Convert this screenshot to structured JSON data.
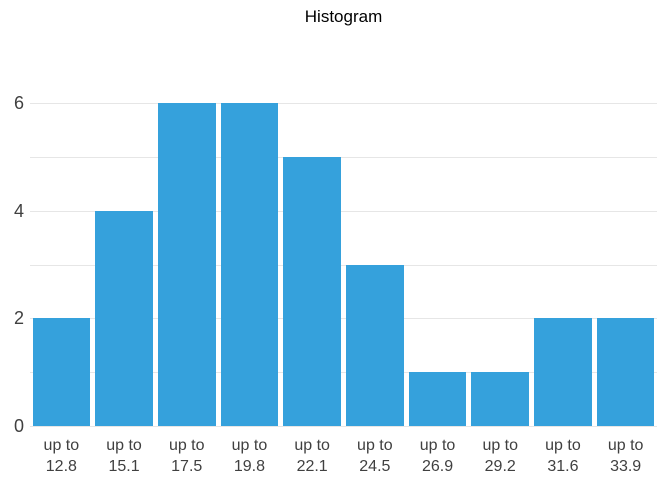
{
  "chart_data": {
    "type": "bar",
    "variant": "histogram",
    "title": "Histogram",
    "categories": [
      "up to\n12.8",
      "up to\n15.1",
      "up to\n17.5",
      "up to\n19.8",
      "up to\n22.1",
      "up to\n24.5",
      "up to\n26.9",
      "up to\n29.2",
      "up to\n31.6",
      "up to\n33.9"
    ],
    "values": [
      2,
      4,
      6,
      6,
      5,
      3,
      1,
      1,
      2,
      2
    ],
    "xlabel": "",
    "ylabel": "",
    "ylim": [
      0,
      6
    ],
    "gridline_step": 1,
    "yticks_labeled": [
      0,
      2,
      4,
      6
    ],
    "grid": true,
    "legend": "none",
    "colors": {
      "bar": "#35a1dc",
      "gridline": "#e6e6e6",
      "tick_text": "#404040",
      "title_text": "#000000",
      "background": "#ffffff"
    }
  }
}
